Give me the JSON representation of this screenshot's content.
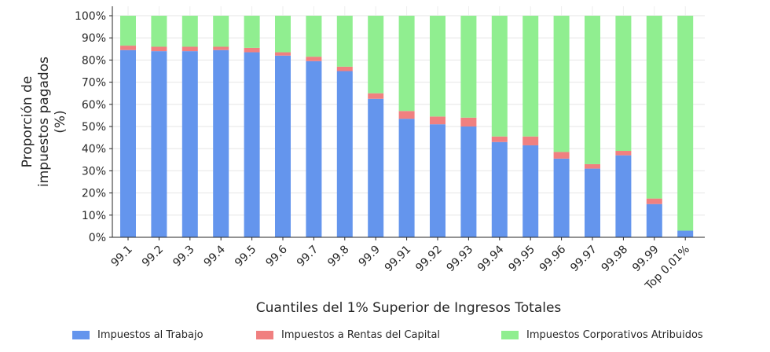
{
  "chart_data": {
    "type": "bar",
    "stacked": true,
    "title": "",
    "xlabel": "Cuantiles del 1% Superior de Ingresos Totales",
    "ylabel_lines": [
      "Proporción de",
      "impuestos pagados",
      "(%)"
    ],
    "categories": [
      "99.1",
      "99.2",
      "99.3",
      "99.4",
      "99.5",
      "99.6",
      "99.7",
      "99.8",
      "99.9",
      "99.91",
      "99.92",
      "99.93",
      "99.94",
      "99.95",
      "99.96",
      "99.97",
      "99.98",
      "99.99",
      "Top 0.01%"
    ],
    "series": [
      {
        "name": "Impuestos al Trabajo",
        "color": "#6495ED",
        "values": [
          84.5,
          84.0,
          84.0,
          84.5,
          83.5,
          82.0,
          79.5,
          75.0,
          62.5,
          53.5,
          51.0,
          50.0,
          43.0,
          41.5,
          35.5,
          31.0,
          37.0,
          15.0,
          3.0
        ]
      },
      {
        "name": "Impuestos a Rentas del Capital",
        "color": "#F08080",
        "values": [
          2.0,
          2.0,
          2.0,
          1.5,
          2.0,
          1.5,
          2.0,
          2.0,
          2.5,
          3.5,
          3.5,
          4.0,
          2.5,
          4.0,
          3.0,
          2.0,
          2.0,
          2.5,
          0.0
        ]
      },
      {
        "name": "Impuestos Corporativos Atribuidos",
        "color": "#90EE90",
        "values": [
          13.5,
          14.0,
          14.0,
          14.0,
          14.5,
          16.5,
          18.5,
          23.0,
          35.0,
          43.0,
          45.5,
          46.0,
          54.5,
          54.5,
          61.5,
          67.0,
          61.0,
          82.5,
          97.0
        ]
      }
    ],
    "ylim": [
      0,
      100
    ],
    "yticks": [
      0,
      10,
      20,
      30,
      40,
      50,
      60,
      70,
      80,
      90,
      100
    ],
    "ytick_labels": [
      "0%",
      "10%",
      "20%",
      "30%",
      "40%",
      "50%",
      "60%",
      "70%",
      "80%",
      "90%",
      "100%"
    ],
    "grid": true,
    "legend_position": "bottom"
  }
}
